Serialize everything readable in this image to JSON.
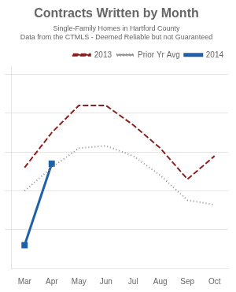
{
  "chart_data": {
    "type": "line",
    "title": "Contracts Written by Month",
    "subtitle": [
      "Single-Family Homes in Hartford County",
      "Data from the CTMLS - Deemed Reliable but not Guaranteed"
    ],
    "categories": [
      "Mar",
      "Apr",
      "May",
      "Jun",
      "Jul",
      "Aug",
      "Sep",
      "Oct"
    ],
    "series": [
      {
        "name": "2013",
        "color": "#8b2020",
        "line_style": "dashed",
        "marker": "none",
        "values": [
          130,
          175,
          210,
          210,
          185,
          155,
          115,
          145
        ]
      },
      {
        "name": "Prior Yr Avg",
        "color": "#909090",
        "line_style": "dotted",
        "marker": "none",
        "values": [
          100,
          130,
          155,
          158,
          145,
          120,
          88,
          82
        ]
      },
      {
        "name": "2014",
        "color": "#2060a8",
        "line_style": "solid",
        "marker": "square",
        "values": [
          30,
          135,
          null,
          null,
          null,
          null,
          null,
          null
        ]
      }
    ],
    "ylim": [
      0,
      260
    ],
    "yticks": [
      50,
      100,
      150,
      200,
      250
    ],
    "grid": true,
    "legend": "upper right",
    "tick_labels": "x"
  }
}
